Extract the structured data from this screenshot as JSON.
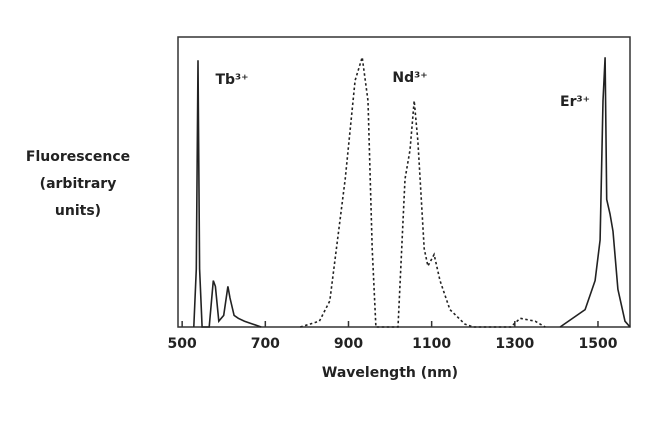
{
  "chart_data": {
    "type": "line",
    "xlabel": "Wavelength (nm)",
    "ylabel": [
      "Fluorescence",
      "(arbitrary",
      "units)"
    ],
    "xlim": [
      490,
      1577
    ],
    "ylim": [
      0,
      100
    ],
    "xticks": [
      500,
      700,
      900,
      1100,
      1300,
      1500
    ],
    "series": [
      {
        "name": "Tb³⁺",
        "color": "#222222",
        "style": "solid",
        "x": [
          528,
          534,
          538,
          542,
          548,
          565,
          575,
          580,
          588,
          600,
          610,
          615,
          625,
          635,
          650,
          670,
          690
        ],
        "values": [
          0,
          20,
          92,
          20,
          0,
          0,
          16,
          14,
          2,
          4,
          14,
          10,
          4,
          3,
          2,
          1,
          0
        ]
      },
      {
        "name": "Nd³⁺",
        "color": "#222222",
        "style": "dotted",
        "x": [
          784,
          830,
          855,
          892,
          916,
          933,
          947,
          957,
          966,
          1019,
          1036,
          1048,
          1058,
          1067,
          1082,
          1091,
          1106,
          1120,
          1144,
          1180,
          1200,
          1290,
          1313,
          1349,
          1373
        ],
        "values": [
          0,
          2,
          9,
          51,
          85,
          93,
          78,
          27,
          0,
          0,
          51,
          61,
          78,
          64,
          27,
          21,
          25,
          16,
          6,
          1,
          0,
          0,
          3,
          2,
          0
        ]
      },
      {
        "name": "Er³⁺",
        "color": "#222222",
        "style": "solid",
        "x": [
          1409,
          1469,
          1493,
          1505,
          1512,
          1517,
          1521,
          1529,
          1536,
          1548,
          1565,
          1577
        ],
        "values": [
          0,
          6,
          16,
          30,
          78,
          93,
          44,
          39,
          33,
          13,
          2,
          0
        ]
      }
    ]
  }
}
